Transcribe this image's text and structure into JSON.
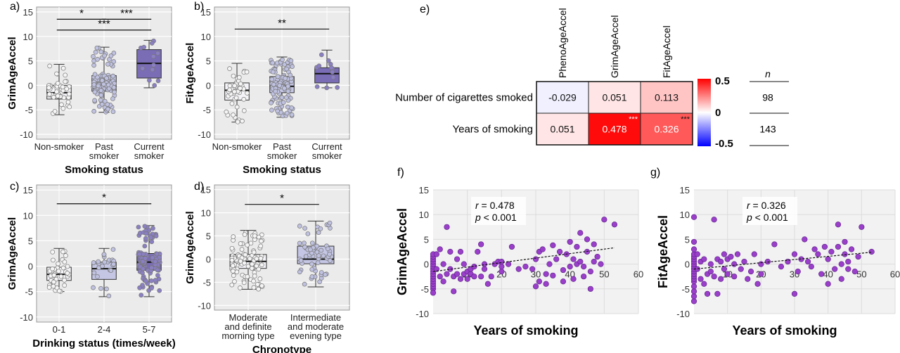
{
  "chart_data": [
    {
      "panel": "a)",
      "type": "box",
      "ylabel": "GrimAgeAccel",
      "xlabel": "Smoking status",
      "categories": [
        "Non-smoker",
        "Past smoker",
        "Current smoker"
      ],
      "yticks": [
        -10,
        -5,
        0,
        5,
        10,
        15
      ],
      "ylim": [
        -11,
        16
      ],
      "boxes": [
        {
          "min": -6.0,
          "q1": -2.8,
          "median": -1.5,
          "q3": 0.0,
          "max": 4.3,
          "fill": "#f4f4f8"
        },
        {
          "min": -5.5,
          "q1": -1.2,
          "median": 0.0,
          "q3": 2.0,
          "max": 7.8,
          "fill": "#c4c6e4"
        },
        {
          "min": -0.5,
          "q1": 1.5,
          "median": 4.5,
          "q3": 7.3,
          "max": 9.2,
          "fill": "#7a6db5"
        }
      ],
      "point_counts": [
        45,
        110,
        12
      ],
      "significance": [
        {
          "from": 0,
          "to": 1,
          "label": "*",
          "y": 13.5
        },
        {
          "from": 1,
          "to": 2,
          "label": "***",
          "y": 13.5
        },
        {
          "from": 0,
          "to": 2,
          "label": "***",
          "y": 11.3
        }
      ]
    },
    {
      "panel": "b)",
      "type": "box",
      "ylabel": "FitAgeAccel",
      "xlabel": "Smoking status",
      "categories": [
        "Non-smoker",
        "Past smoker",
        "Current smoker"
      ],
      "yticks": [
        -10,
        -5,
        0,
        5,
        10,
        15
      ],
      "ylim": [
        -11,
        16
      ],
      "boxes": [
        {
          "min": -7.5,
          "q1": -3.0,
          "median": -1.0,
          "q3": 0.5,
          "max": 4.5,
          "fill": "#f4f4f8"
        },
        {
          "min": -6.5,
          "q1": -1.5,
          "median": -0.2,
          "q3": 1.8,
          "max": 5.8,
          "fill": "#c4c6e4"
        },
        {
          "min": -0.5,
          "q1": 0.5,
          "median": 2.4,
          "q3": 3.6,
          "max": 7.2,
          "fill": "#7a6db5"
        }
      ],
      "point_counts": [
        45,
        110,
        12
      ],
      "significance": [
        {
          "from": 0,
          "to": 2,
          "label": "**",
          "y": 11.5
        }
      ]
    },
    {
      "panel": "c)",
      "type": "box",
      "ylabel": "GrimAgeAccel",
      "xlabel": "Drinking status (times/week)",
      "categories": [
        "0-1",
        "2-4",
        "5-7"
      ],
      "yticks": [
        -10,
        -5,
        0,
        5,
        10,
        15
      ],
      "ylim": [
        -11,
        16
      ],
      "boxes": [
        {
          "min": -5.0,
          "q1": -2.8,
          "median": -1.6,
          "q3": -0.2,
          "max": 3.5,
          "fill": "#f4f4f8"
        },
        {
          "min": -6.0,
          "q1": -2.6,
          "median": -0.5,
          "q3": 0.8,
          "max": 3.5,
          "fill": "#c4c6e4"
        },
        {
          "min": -6.0,
          "q1": -0.8,
          "median": 0.8,
          "q3": 2.5,
          "max": 8.0,
          "fill": "#7a6db5"
        }
      ],
      "point_counts": [
        40,
        25,
        100
      ],
      "significance": [
        {
          "from": 0,
          "to": 2,
          "label": "*",
          "y": 12.3
        }
      ]
    },
    {
      "panel": "d)",
      "type": "box",
      "ylabel": "GrimAgeAccel",
      "xlabel": "Chronotype",
      "categories": [
        [
          "Moderate",
          "and definite",
          "morning type"
        ],
        [
          "Intermediate",
          "and moderate",
          "evening type"
        ]
      ],
      "yticks": [
        -10,
        -5,
        0,
        5,
        10,
        15
      ],
      "ylim": [
        -11,
        16
      ],
      "boxes": [
        {
          "min": -6.5,
          "q1": -2.0,
          "median": -0.5,
          "q3": 1.0,
          "max": 6.2,
          "fill": "#f4f4f8"
        },
        {
          "min": -6.0,
          "q1": -1.0,
          "median": 0.0,
          "q3": 2.8,
          "max": 8.2,
          "fill": "#c4c6e4"
        }
      ],
      "point_counts": [
        90,
        60
      ],
      "significance": [
        {
          "from": 0,
          "to": 1,
          "label": "*",
          "y": 11.8
        }
      ]
    },
    {
      "panel": "e)",
      "type": "heatmap",
      "columns": [
        "PhenoAgeAccel",
        "GrimAgeAccel",
        "FitAgeAccel"
      ],
      "rows": [
        "Number of cigarettes smoked",
        "Years of smoking"
      ],
      "values": [
        [
          -0.029,
          0.051,
          0.113
        ],
        [
          0.051,
          0.478,
          0.326
        ]
      ],
      "labels": [
        [
          "-0.029",
          "0.051",
          "0.113"
        ],
        [
          "0.051",
          "0.478",
          "0.326"
        ]
      ],
      "stars": [
        [
          "",
          "",
          ""
        ],
        [
          "",
          "***",
          "***"
        ]
      ],
      "scale_ticks": [
        "0.5",
        "0",
        "-0.5"
      ],
      "scale_colors": {
        "high": "#ff0000",
        "mid": "#ffffff",
        "low": "#0000ff"
      },
      "n_header": "n",
      "n_values": [
        "98",
        "143"
      ]
    },
    {
      "panel": "f)",
      "type": "scatter",
      "ylabel": "GrimAgeAccel",
      "xlabel": "Years of smoking",
      "xticks": [
        10,
        20,
        30,
        40,
        50,
        60
      ],
      "yticks": [
        -10,
        -5,
        0,
        5,
        10,
        15
      ],
      "xlim": [
        0,
        60
      ],
      "ylim": [
        -10,
        15
      ],
      "annotation_r": "r",
      "annotation_r_value": " = 0.478",
      "annotation_p": "p",
      "annotation_p_value": " < 0.001",
      "point_color": "#9a3fc9",
      "trend": [
        [
          0,
          -1.5
        ],
        [
          53,
          3.3
        ]
      ],
      "points": [
        [
          0,
          -5
        ],
        [
          0,
          -4.5
        ],
        [
          0,
          -4
        ],
        [
          0,
          -3.5
        ],
        [
          0,
          -3
        ],
        [
          0,
          -2.5
        ],
        [
          0,
          -2
        ],
        [
          0,
          -1.5
        ],
        [
          0,
          -1
        ],
        [
          0,
          -0.5
        ],
        [
          0,
          0
        ],
        [
          0,
          0.5
        ],
        [
          0,
          1
        ],
        [
          0,
          1.5
        ],
        [
          0,
          2
        ],
        [
          0,
          -5.8
        ],
        [
          1,
          -1
        ],
        [
          1,
          2
        ],
        [
          2,
          -2.5
        ],
        [
          2,
          3
        ],
        [
          3,
          -3.5
        ],
        [
          3,
          0
        ],
        [
          4,
          -2
        ],
        [
          4,
          7.5
        ],
        [
          5,
          -1
        ],
        [
          5,
          2.5
        ],
        [
          6,
          -2.5
        ],
        [
          6,
          -5.5
        ],
        [
          7,
          -2
        ],
        [
          7,
          1
        ],
        [
          8,
          -3
        ],
        [
          8,
          2.5
        ],
        [
          9,
          -2
        ],
        [
          9,
          0
        ],
        [
          10,
          -1.5
        ],
        [
          10,
          -3
        ],
        [
          11,
          -2
        ],
        [
          11,
          -1
        ],
        [
          12,
          -0.5
        ],
        [
          12,
          -2.5
        ],
        [
          13,
          2.5
        ],
        [
          14,
          -2.5
        ],
        [
          14,
          4
        ],
        [
          15,
          -1
        ],
        [
          15,
          0
        ],
        [
          16,
          -4
        ],
        [
          17,
          -2.5
        ],
        [
          18,
          0
        ],
        [
          19,
          0.5
        ],
        [
          20,
          -1.5
        ],
        [
          20,
          -0.5
        ],
        [
          20,
          0.5
        ],
        [
          22,
          0
        ],
        [
          23,
          3.5
        ],
        [
          25,
          -1
        ],
        [
          27,
          -0.5
        ],
        [
          29,
          -1
        ],
        [
          30,
          -4.5
        ],
        [
          30,
          1
        ],
        [
          31,
          -3.5
        ],
        [
          31,
          2.5
        ],
        [
          32,
          3
        ],
        [
          33,
          -2
        ],
        [
          33,
          -4
        ],
        [
          34,
          0
        ],
        [
          35,
          3.8
        ],
        [
          35,
          -2.3
        ],
        [
          36,
          1
        ],
        [
          37,
          2.5
        ],
        [
          38,
          -1.2
        ],
        [
          38,
          -3.5
        ],
        [
          39,
          2
        ],
        [
          40,
          4.5
        ],
        [
          40,
          -0.5
        ],
        [
          41,
          1
        ],
        [
          41,
          -3
        ],
        [
          42,
          3.5
        ],
        [
          42,
          0
        ],
        [
          43,
          6.3
        ],
        [
          43,
          0.5
        ],
        [
          44,
          -0.5
        ],
        [
          44,
          -2.5
        ],
        [
          45,
          2.5
        ],
        [
          45,
          5
        ],
        [
          46,
          -1.5
        ],
        [
          46,
          -5
        ],
        [
          47,
          0.5
        ],
        [
          47,
          4
        ],
        [
          48,
          1.5
        ],
        [
          49,
          0
        ],
        [
          50,
          9
        ],
        [
          53,
          8
        ]
      ]
    },
    {
      "panel": "g)",
      "type": "scatter",
      "ylabel": "FitAgeAccel",
      "xlabel": "Years of smoking",
      "xticks": [
        10,
        20,
        30,
        40,
        50,
        60
      ],
      "yticks": [
        -10,
        -5,
        0,
        5,
        10,
        15
      ],
      "xlim": [
        0,
        60
      ],
      "ylim": [
        -10,
        15
      ],
      "annotation_r": "r",
      "annotation_r_value": " = 0.326",
      "annotation_p": "p",
      "annotation_p_value": " < 0.001",
      "point_color": "#9a3fc9",
      "trend": [
        [
          0,
          -1.0
        ],
        [
          53,
          2.4
        ]
      ],
      "points": [
        [
          0,
          -7.5
        ],
        [
          0,
          -6.5
        ],
        [
          0,
          -5.5
        ],
        [
          0,
          -4.5
        ],
        [
          0,
          -3.5
        ],
        [
          0,
          -3
        ],
        [
          0,
          -2.5
        ],
        [
          0,
          -2
        ],
        [
          0,
          -1.5
        ],
        [
          0,
          -1
        ],
        [
          0,
          -0.5
        ],
        [
          0,
          0
        ],
        [
          0,
          0.5
        ],
        [
          0,
          1
        ],
        [
          0,
          1.5
        ],
        [
          0,
          2
        ],
        [
          0,
          3
        ],
        [
          0,
          4.5
        ],
        [
          0,
          9.5
        ],
        [
          1,
          -1
        ],
        [
          1,
          2
        ],
        [
          2,
          -3
        ],
        [
          2,
          0.5
        ],
        [
          3,
          -4
        ],
        [
          3,
          1
        ],
        [
          4,
          -2
        ],
        [
          4,
          -6
        ],
        [
          5,
          0
        ],
        [
          5,
          -1.5
        ],
        [
          6,
          -2.5
        ],
        [
          6,
          9
        ],
        [
          7,
          1
        ],
        [
          7,
          -6
        ],
        [
          8,
          0.5
        ],
        [
          8,
          -3
        ],
        [
          9,
          -1
        ],
        [
          9,
          2
        ],
        [
          10,
          1
        ],
        [
          10,
          -2
        ],
        [
          11,
          1.5
        ],
        [
          12,
          -2.5
        ],
        [
          12,
          0
        ],
        [
          13,
          2
        ],
        [
          14,
          -1
        ],
        [
          15,
          0.5
        ],
        [
          16,
          -3
        ],
        [
          17,
          -1.5
        ],
        [
          18,
          2
        ],
        [
          19,
          -4
        ],
        [
          20,
          0
        ],
        [
          20,
          -2
        ],
        [
          22,
          0.5
        ],
        [
          24,
          4
        ],
        [
          26,
          -0.5
        ],
        [
          28,
          0.5
        ],
        [
          30,
          2
        ],
        [
          30,
          -6
        ],
        [
          31,
          -1.5
        ],
        [
          32,
          1
        ],
        [
          33,
          5
        ],
        [
          34,
          0.5
        ],
        [
          35,
          -0.5
        ],
        [
          36,
          3
        ],
        [
          37,
          2
        ],
        [
          38,
          -2
        ],
        [
          39,
          3.5
        ],
        [
          40,
          1
        ],
        [
          40,
          -4
        ],
        [
          41,
          2.5
        ],
        [
          42,
          -1
        ],
        [
          43,
          8
        ],
        [
          43,
          3.5
        ],
        [
          44,
          0
        ],
        [
          44,
          -3
        ],
        [
          45,
          4.5
        ],
        [
          45,
          2
        ],
        [
          46,
          -1
        ],
        [
          46,
          0.5
        ],
        [
          47,
          3
        ],
        [
          48,
          -1.5
        ],
        [
          49,
          1.5
        ],
        [
          50,
          7.5
        ],
        [
          53,
          2.5
        ]
      ]
    }
  ]
}
